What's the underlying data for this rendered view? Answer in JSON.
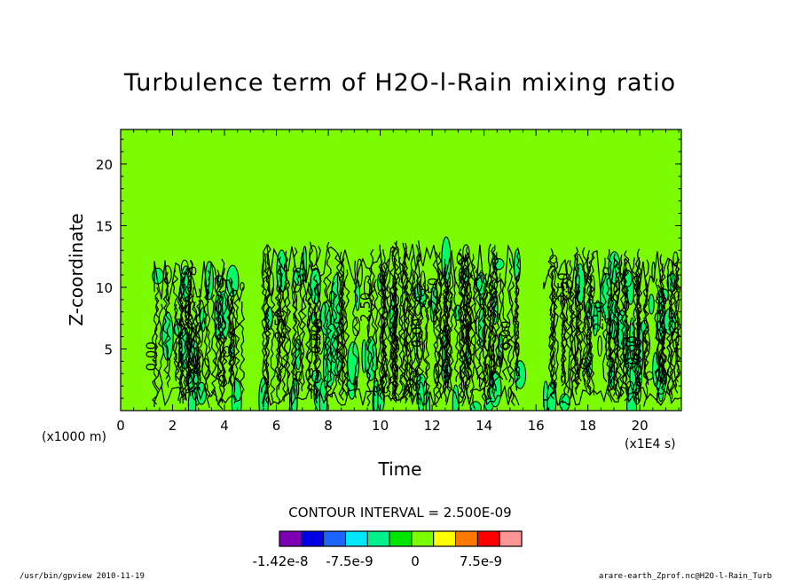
{
  "chart_data": {
    "type": "heatmap",
    "title": "Turbulence term of H2O-l-Rain mixing ratio",
    "xlabel": "Time",
    "ylabel": "Z-coordinate",
    "x_unit_note": "(x1E4 s)",
    "y_unit_note": "(x1000 m)",
    "xlim": [
      0,
      21.6
    ],
    "ylim": [
      0,
      22.8
    ],
    "x_ticks": [
      "0",
      "2",
      "4",
      "6",
      "8",
      "10",
      "12",
      "14",
      "16",
      "18",
      "20"
    ],
    "y_ticks": [
      "5",
      "10",
      "15",
      "20"
    ],
    "background_value": 0,
    "background_color": "#7cfc00",
    "contour_interval_text": "CONTOUR INTERVAL = 2.500E-09",
    "contour_interval": 2.5e-09,
    "contour_labels": [
      "0.00",
      "2.50"
    ],
    "activity_bands": [
      {
        "x_start": 1.3,
        "x_end": 4.8,
        "z_top": 12.5
      },
      {
        "x_start": 5.5,
        "x_end": 15.4,
        "z_top": 13.8
      },
      {
        "x_start": 16.3,
        "x_end": 21.6,
        "z_top": 13.3
      }
    ],
    "colorbar": {
      "colors": [
        "#7d00b4",
        "#0000e6",
        "#1e64ff",
        "#00e6ff",
        "#00f08c",
        "#00e600",
        "#7cfc00",
        "#ffff00",
        "#ff7800",
        "#ff0000",
        "#ff9696"
      ],
      "tick_labels": [
        "-1.42e-8",
        "-7.5e-9",
        "0",
        "7.5e-9"
      ]
    }
  },
  "footer": {
    "left": "/usr/bin/gpview   2010-11-19",
    "right": "arare-earth_Zprof.nc@H2O-l-Rain_Turb"
  },
  "colors": {
    "background_field": "#7cfc00",
    "positive_blobs": "#00ff66",
    "contour_lines": "#000000"
  }
}
